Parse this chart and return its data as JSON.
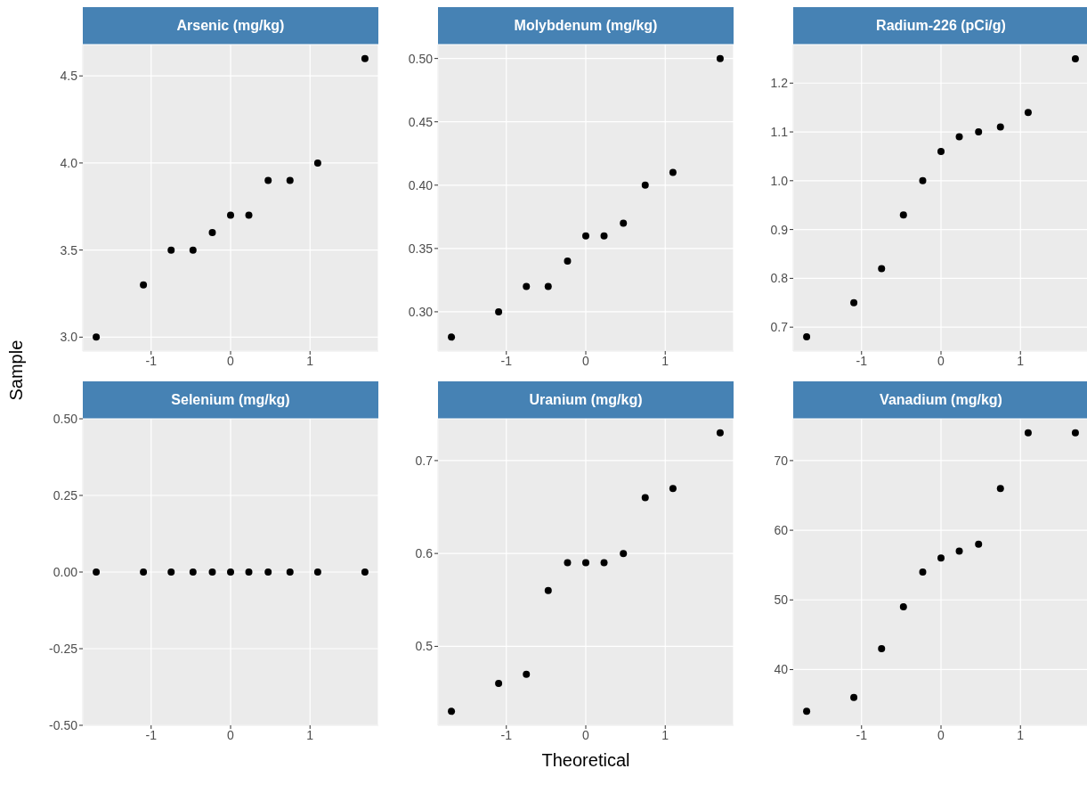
{
  "chart_data": [
    {
      "type": "scatter",
      "title": "Arsenic (mg/kg)",
      "ylabel": "Sample",
      "x": [
        -1.691,
        -1.097,
        -0.748,
        -0.473,
        -0.23,
        0,
        0.23,
        0.473,
        0.748,
        1.097,
        1.691
      ],
      "values": [
        3.0,
        3.3,
        3.5,
        3.5,
        3.6,
        3.7,
        3.7,
        3.9,
        3.9,
        4.0,
        4.6
      ],
      "color": "#000000",
      "marker": "circle",
      "grid": true,
      "xlim": [
        -1.86,
        1.86
      ],
      "xticks": [
        -1,
        0,
        1
      ],
      "ylim": [
        2.92,
        4.68
      ],
      "yticks": [
        {
          "value": 3,
          "label": "3.0"
        },
        3.5,
        {
          "value": 4,
          "label": "4.0"
        },
        4.5
      ]
    },
    {
      "type": "scatter",
      "title": "Molybdenum (mg/kg)",
      "x": [
        -1.691,
        -1.097,
        -0.748,
        -0.473,
        -0.23,
        0,
        0.23,
        0.473,
        0.748,
        1.097,
        1.691
      ],
      "values": [
        0.28,
        0.3,
        0.32,
        0.32,
        0.34,
        0.36,
        0.36,
        0.37,
        0.4,
        0.41,
        0.5
      ],
      "color": "#000000",
      "marker": "circle",
      "grid": true,
      "xlim": [
        -1.86,
        1.86
      ],
      "xticks": [
        -1,
        0,
        1
      ],
      "ylim": [
        0.269,
        0.511
      ],
      "yticks": [
        {
          "value": 0.3,
          "label": "0.30"
        },
        0.35,
        {
          "value": 0.4,
          "label": "0.40"
        },
        0.45,
        {
          "value": 0.5,
          "label": "0.50"
        }
      ]
    },
    {
      "type": "scatter",
      "title": "Radium-226 (pCi/g)",
      "x": [
        -1.691,
        -1.097,
        -0.748,
        -0.473,
        -0.23,
        0,
        0.23,
        0.473,
        0.748,
        1.097,
        1.691
      ],
      "values": [
        0.68,
        0.75,
        0.82,
        0.93,
        1.0,
        1.06,
        1.09,
        1.1,
        1.11,
        1.14,
        1.25
      ],
      "color": "#000000",
      "marker": "circle",
      "grid": true,
      "xlim": [
        -1.86,
        1.86
      ],
      "xticks": [
        -1,
        0,
        1
      ],
      "ylim": [
        0.651,
        1.279
      ],
      "yticks": [
        0.7,
        0.8,
        0.9,
        {
          "value": 1,
          "label": "1.0"
        },
        1.1,
        1.2
      ]
    },
    {
      "type": "scatter",
      "title": "Selenium (mg/kg)",
      "x": [
        -1.691,
        -1.097,
        -0.748,
        -0.473,
        -0.23,
        0,
        0.23,
        0.473,
        0.748,
        1.097,
        1.691
      ],
      "values": [
        0,
        0,
        0,
        0,
        0,
        0,
        0,
        0,
        0,
        0,
        0
      ],
      "color": "#000000",
      "marker": "circle",
      "grid": true,
      "xlim": [
        -1.86,
        1.86
      ],
      "xticks": [
        -1,
        0,
        1
      ],
      "ylim": [
        -0.5,
        0.5
      ],
      "yticks": [
        {
          "value": -0.5,
          "label": "-0.50"
        },
        {
          "value": -0.25,
          "label": "-0.25"
        },
        {
          "value": 0,
          "label": "0.00"
        },
        {
          "value": 0.25,
          "label": "0.25"
        },
        {
          "value": 0.5,
          "label": "0.50"
        }
      ]
    },
    {
      "type": "scatter",
      "title": "Uranium (mg/kg)",
      "xlabel": "Theoretical",
      "x": [
        -1.691,
        -1.097,
        -0.748,
        -0.473,
        -0.23,
        0,
        0.23,
        0.473,
        0.748,
        1.097,
        1.691
      ],
      "values": [
        0.43,
        0.46,
        0.47,
        0.56,
        0.59,
        0.59,
        0.59,
        0.6,
        0.66,
        0.67,
        0.73
      ],
      "color": "#000000",
      "marker": "circle",
      "grid": true,
      "xlim": [
        -1.86,
        1.86
      ],
      "xticks": [
        -1,
        0,
        1
      ],
      "ylim": [
        0.415,
        0.745
      ],
      "yticks": [
        0.5,
        0.6,
        0.7
      ]
    },
    {
      "type": "scatter",
      "title": "Vanadium (mg/kg)",
      "x": [
        -1.691,
        -1.097,
        -0.748,
        -0.473,
        -0.23,
        0,
        0.23,
        0.473,
        0.748,
        1.097,
        1.691
      ],
      "values": [
        34,
        36,
        43,
        49,
        54,
        56,
        57,
        58,
        66,
        74,
        74
      ],
      "color": "#000000",
      "marker": "circle",
      "grid": true,
      "xlim": [
        -1.86,
        1.86
      ],
      "xticks": [
        -1,
        0,
        1
      ],
      "ylim": [
        32,
        76
      ],
      "yticks": [
        40,
        50,
        60,
        70
      ]
    }
  ]
}
